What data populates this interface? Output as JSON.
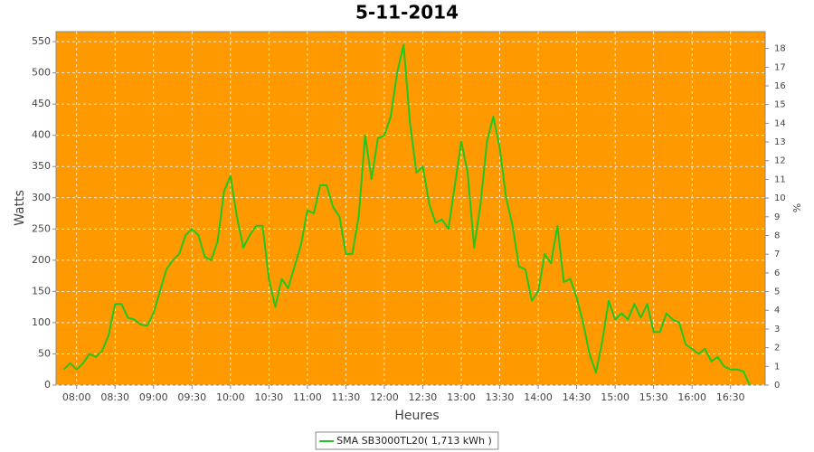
{
  "chart_data": {
    "type": "line",
    "title": "5-11-2014",
    "x_label": "Heures",
    "y_label": "Watts",
    "y2_label": "%",
    "x": [
      "07:50",
      "07:55",
      "08:00",
      "08:05",
      "08:10",
      "08:15",
      "08:20",
      "08:25",
      "08:30",
      "08:35",
      "08:40",
      "08:45",
      "08:50",
      "08:55",
      "09:00",
      "09:05",
      "09:10",
      "09:15",
      "09:20",
      "09:25",
      "09:30",
      "09:35",
      "09:40",
      "09:45",
      "09:50",
      "09:55",
      "10:00",
      "10:05",
      "10:10",
      "10:15",
      "10:20",
      "10:25",
      "10:30",
      "10:35",
      "10:40",
      "10:45",
      "10:50",
      "10:55",
      "11:00",
      "11:05",
      "11:10",
      "11:15",
      "11:20",
      "11:25",
      "11:30",
      "11:35",
      "11:40",
      "11:45",
      "11:50",
      "11:55",
      "12:00",
      "12:05",
      "12:10",
      "12:15",
      "12:20",
      "12:25",
      "12:30",
      "12:35",
      "12:40",
      "12:45",
      "12:50",
      "12:55",
      "13:00",
      "13:05",
      "13:10",
      "13:15",
      "13:20",
      "13:25",
      "13:30",
      "13:35",
      "13:40",
      "13:45",
      "13:50",
      "13:55",
      "14:00",
      "14:05",
      "14:10",
      "14:15",
      "14:20",
      "14:25",
      "14:30",
      "14:35",
      "14:40",
      "14:45",
      "14:50",
      "14:55",
      "15:00",
      "15:05",
      "15:10",
      "15:15",
      "15:20",
      "15:25",
      "15:30",
      "15:35",
      "15:40",
      "15:45",
      "15:50",
      "15:55",
      "16:00",
      "16:05",
      "16:10",
      "16:15",
      "16:20",
      "16:25",
      "16:30",
      "16:35",
      "16:40",
      "16:45"
    ],
    "series": [
      {
        "name": "SMA SB3000TL20( 1,713 kWh )",
        "color": "#1fc81f",
        "values": [
          25,
          35,
          25,
          35,
          50,
          45,
          55,
          80,
          130,
          130,
          108,
          105,
          97,
          95,
          115,
          150,
          185,
          200,
          210,
          240,
          250,
          240,
          205,
          200,
          230,
          310,
          335,
          270,
          220,
          240,
          255,
          255,
          170,
          125,
          170,
          155,
          190,
          225,
          280,
          275,
          320,
          320,
          285,
          270,
          210,
          210,
          270,
          400,
          330,
          395,
          400,
          430,
          500,
          545,
          420,
          340,
          350,
          290,
          260,
          265,
          250,
          320,
          390,
          340,
          220,
          290,
          390,
          430,
          380,
          300,
          255,
          190,
          185,
          135,
          150,
          210,
          195,
          255,
          165,
          170,
          140,
          100,
          50,
          20,
          70,
          135,
          105,
          115,
          105,
          130,
          108,
          130,
          85,
          85,
          115,
          105,
          100,
          65,
          58,
          50,
          58,
          38,
          45,
          30,
          25,
          25,
          22,
          0
        ]
      }
    ],
    "xlim": [
      "07:44",
      "16:57"
    ],
    "xticks": [
      "08:00",
      "08:30",
      "09:00",
      "09:30",
      "10:00",
      "10:30",
      "11:00",
      "11:30",
      "12:00",
      "12:30",
      "13:00",
      "13:30",
      "14:00",
      "14:30",
      "15:00",
      "15:30",
      "16:00",
      "16:30"
    ],
    "ylim": [
      0,
      566
    ],
    "yticks": [
      0,
      50,
      100,
      150,
      200,
      250,
      300,
      350,
      400,
      450,
      500,
      550
    ],
    "y2lim": [
      0,
      18.9
    ],
    "y2ticks": [
      0,
      1,
      2,
      3,
      4,
      5,
      6,
      7,
      8,
      9,
      10,
      11,
      12,
      13,
      14,
      15,
      16,
      17,
      18
    ],
    "grid": true,
    "background": "#ff9900"
  }
}
